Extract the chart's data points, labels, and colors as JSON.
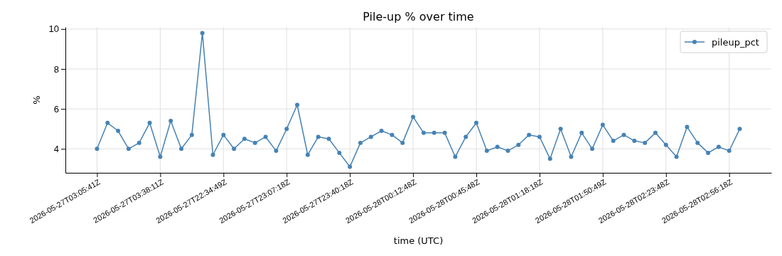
{
  "chart_data": {
    "type": "line",
    "title": "Pile-up % over time",
    "xlabel": "time (UTC)",
    "ylabel": "%",
    "categories": [
      "2026-05-27T03:05:41Z",
      null,
      null,
      null,
      null,
      null,
      "2026-05-27T03:38:11Z",
      null,
      null,
      null,
      null,
      null,
      "2026-05-27T22:34:49Z",
      null,
      null,
      null,
      null,
      null,
      "2026-05-27T23:07:18Z",
      null,
      null,
      null,
      null,
      null,
      "2026-05-27T23:40:18Z",
      null,
      null,
      null,
      null,
      null,
      "2026-05-28T00:12:48Z",
      null,
      null,
      null,
      null,
      null,
      "2026-05-28T00:45:48Z",
      null,
      null,
      null,
      null,
      null,
      "2026-05-28T01:18:18Z",
      null,
      null,
      null,
      null,
      null,
      "2026-05-28T01:50:49Z",
      null,
      null,
      null,
      null,
      null,
      "2026-05-28T02:23:48Z",
      null,
      null,
      null,
      null,
      null,
      "2026-05-28T02:56:18Z",
      null
    ],
    "series": [
      {
        "name": "pileup_pct",
        "color": "#4682b4",
        "values": [
          4.0,
          5.3,
          4.9,
          4.0,
          4.3,
          5.3,
          3.6,
          5.4,
          4.0,
          4.7,
          9.8,
          3.7,
          4.7,
          4.0,
          4.5,
          4.3,
          4.6,
          3.9,
          5.0,
          6.2,
          3.7,
          4.6,
          4.5,
          3.8,
          3.1,
          4.3,
          4.6,
          4.9,
          4.7,
          4.3,
          5.6,
          4.8,
          4.8,
          4.8,
          3.6,
          4.6,
          5.3,
          3.9,
          4.1,
          3.9,
          4.2,
          4.7,
          4.6,
          3.5,
          5.0,
          3.6,
          4.8,
          4.0,
          5.2,
          4.4,
          4.7,
          4.4,
          4.3,
          4.8,
          4.2,
          3.6,
          5.1,
          4.3,
          3.8,
          4.1,
          3.9,
          5.0
        ]
      }
    ],
    "ylim": [
      2.8,
      10.1
    ],
    "yticks": [
      4,
      6,
      8,
      10
    ],
    "grid": true,
    "legend": "top right",
    "marker": "circle",
    "line_style": "solid"
  }
}
